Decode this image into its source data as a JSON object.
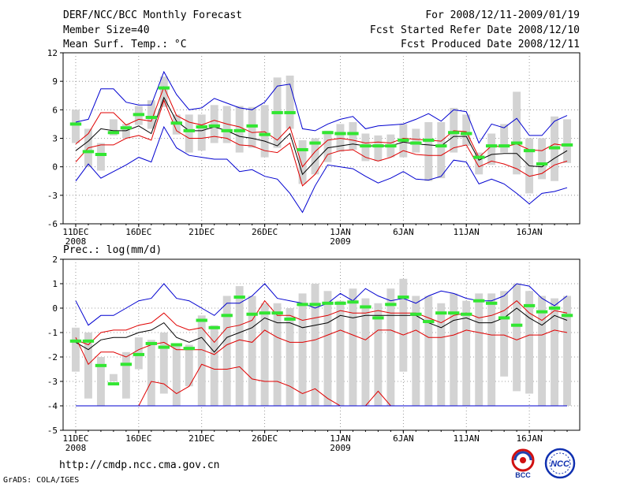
{
  "header": {
    "title": "DERF/NCC/BCC Monthly Forecast",
    "member_size": "Member Size=40",
    "variable": "Mean Surf. Temp.: °C",
    "period": "For 2008/12/11-2009/01/19",
    "started": "Fcst Started Refer Date 2008/12/10",
    "produced": "Fcst Produced Date 2008/12/11"
  },
  "prec_label": "Prec.: log(mm/d)",
  "footer_url": "http://cmdp.ncc.cma.gov.cn",
  "grads_credit": "GrADS: COLA/IGES",
  "logos": {
    "bcc": "BCC",
    "ncc": "NCC"
  },
  "colors": {
    "box": "#d3d3d3",
    "median": "#000000",
    "quartile": "#e00000",
    "extreme": "#0000d0",
    "observed": "#32e632",
    "grid": "#808080"
  },
  "chart_data": [
    {
      "type": "line",
      "title": "Mean Surf. Temp.: °C",
      "xlabel": "",
      "ylabel": "°C",
      "ylim": [
        -6,
        12
      ],
      "yticks": [
        "12",
        "9",
        "6",
        "3",
        "0",
        "-3",
        "-6"
      ],
      "xticks": [
        {
          "day": 1,
          "label": "11DEC",
          "sub": "2008"
        },
        {
          "day": 6,
          "label": "16DEC",
          "sub": ""
        },
        {
          "day": 11,
          "label": "21DEC",
          "sub": ""
        },
        {
          "day": 16,
          "label": "26DEC",
          "sub": ""
        },
        {
          "day": 22,
          "label": "1JAN",
          "sub": "2009"
        },
        {
          "day": 27,
          "label": "6JAN",
          "sub": ""
        },
        {
          "day": 32,
          "label": "11JAN",
          "sub": ""
        },
        {
          "day": 37,
          "label": "16JAN",
          "sub": ""
        }
      ],
      "days": [
        1,
        2,
        3,
        4,
        5,
        6,
        7,
        8,
        9,
        10,
        11,
        12,
        13,
        14,
        15,
        16,
        17,
        18,
        19,
        20,
        21,
        22,
        23,
        24,
        25,
        26,
        27,
        28,
        29,
        30,
        31,
        32,
        33,
        34,
        35,
        36,
        37,
        38,
        39,
        40
      ],
      "series": [
        {
          "name": "max",
          "values": [
            -1.5,
            0.3,
            -1.2,
            -0.5,
            0.2,
            1.0,
            0.5,
            4.2,
            2.0,
            1.2,
            1.0,
            0.8,
            0.8,
            -0.5,
            -0.3,
            -1.0,
            -1.3,
            -2.8,
            -4.8,
            -2.0,
            0.2,
            0.0,
            -0.2,
            -1.0,
            -1.7,
            -1.2,
            -0.5,
            -1.3,
            -1.4,
            -1.0,
            0.7,
            0.5,
            -1.8,
            -1.3,
            -1.8,
            -2.8,
            -3.9,
            -2.8,
            -2.6,
            -2.2
          ]
        },
        {
          "name": "q25",
          "values": [
            0.5,
            2.0,
            2.3,
            2.3,
            3.0,
            3.3,
            2.8,
            7.0,
            3.8,
            3.0,
            3.0,
            3.2,
            3.0,
            2.3,
            2.2,
            1.7,
            1.5,
            2.5,
            -2.0,
            -0.8,
            1.3,
            1.7,
            1.8,
            1.0,
            0.6,
            1.0,
            1.7,
            1.3,
            1.2,
            1.2,
            2.0,
            2.3,
            0.0,
            0.6,
            0.3,
            -0.2,
            -1.0,
            -0.7,
            0.2,
            0.6
          ]
        },
        {
          "name": "median",
          "values": [
            1.7,
            2.7,
            4.0,
            3.8,
            3.8,
            4.3,
            3.5,
            7.3,
            4.8,
            3.8,
            3.8,
            4.2,
            3.8,
            3.2,
            3.0,
            2.7,
            2.2,
            3.5,
            -0.8,
            0.6,
            2.0,
            2.2,
            2.4,
            2.2,
            2.2,
            2.2,
            2.6,
            2.4,
            2.3,
            2.2,
            3.2,
            3.2,
            0.7,
            1.3,
            1.4,
            1.4,
            0.1,
            0.0,
            0.9,
            1.7
          ]
        },
        {
          "name": "q75",
          "values": [
            2.4,
            3.5,
            5.7,
            5.7,
            4.4,
            5.0,
            4.8,
            8.4,
            5.4,
            4.7,
            4.4,
            4.9,
            4.5,
            4.2,
            3.6,
            3.7,
            2.8,
            4.2,
            0.0,
            1.6,
            2.8,
            3.0,
            2.8,
            2.5,
            2.6,
            2.5,
            3.0,
            2.9,
            2.8,
            2.7,
            3.8,
            3.7,
            1.0,
            2.2,
            2.1,
            2.4,
            1.8,
            1.7,
            2.4,
            2.2
          ]
        },
        {
          "name": "min",
          "values": [
            4.7,
            5.0,
            8.2,
            8.2,
            6.8,
            6.5,
            6.5,
            10.0,
            7.6,
            6.0,
            6.2,
            7.2,
            6.7,
            6.2,
            6.0,
            6.8,
            8.5,
            8.7,
            4.0,
            3.8,
            4.5,
            5.0,
            5.3,
            4.0,
            4.3,
            4.4,
            4.5,
            5.0,
            5.6,
            4.8,
            6.0,
            5.8,
            2.5,
            4.5,
            4.1,
            5.1,
            3.3,
            3.3,
            4.8,
            5.4
          ]
        }
      ],
      "box_low": [
        2.5,
        0.0,
        -0.4,
        3.3,
        3.0,
        4.4,
        4.0,
        6.3,
        3.4,
        1.5,
        1.7,
        2.5,
        2.5,
        1.5,
        2.0,
        1.0,
        2.0,
        4.0,
        -1.8,
        -0.8,
        0.5,
        1.6,
        1.8,
        0.6,
        0.6,
        1.0,
        1.0,
        1.5,
        -1.5,
        -1.2,
        1.5,
        2.2,
        -0.8,
        0.2,
        1.5,
        -0.8,
        -2.8,
        -1.3,
        -1.5,
        0.4
      ],
      "box_high": [
        6.0,
        4.0,
        2.5,
        5.0,
        4.5,
        6.4,
        7.0,
        9.5,
        5.5,
        5.5,
        5.5,
        6.5,
        6.4,
        6.4,
        6.3,
        6.5,
        9.4,
        9.6,
        2.8,
        3.0,
        3.8,
        4.5,
        4.7,
        3.5,
        3.3,
        3.4,
        4.5,
        4.0,
        4.7,
        4.7,
        6.2,
        5.5,
        1.5,
        3.5,
        4.5,
        7.9,
        3.0,
        3.0,
        5.3,
        5.0
      ],
      "observed": [
        4.5,
        1.6,
        1.3,
        3.6,
        4.1,
        5.5,
        5.2,
        8.3,
        4.6,
        3.8,
        4.2,
        4.3,
        3.8,
        3.8,
        4.3,
        3.4,
        5.7,
        5.7,
        1.8,
        2.5,
        3.6,
        3.5,
        3.5,
        2.2,
        2.2,
        2.2,
        2.8,
        2.5,
        2.8,
        2.2,
        3.6,
        3.5,
        1.0,
        2.2,
        2.2,
        2.5,
        1.7,
        0.3,
        2.0,
        2.3
      ]
    },
    {
      "type": "line",
      "title": "Prec.: log(mm/d)",
      "xlabel": "",
      "ylabel": "log(mm/d)",
      "ylim": [
        -5,
        2
      ],
      "yticks": [
        "2",
        "1",
        "0",
        "-1",
        "-2",
        "-3",
        "-4",
        "-5"
      ],
      "xticks": [
        {
          "day": 1,
          "label": "11DEC",
          "sub": "2008"
        },
        {
          "day": 6,
          "label": "16DEC",
          "sub": ""
        },
        {
          "day": 11,
          "label": "21DEC",
          "sub": ""
        },
        {
          "day": 16,
          "label": "26DEC",
          "sub": ""
        },
        {
          "day": 22,
          "label": "1JAN",
          "sub": "2009"
        },
        {
          "day": 27,
          "label": "6JAN",
          "sub": ""
        },
        {
          "day": 32,
          "label": "11JAN",
          "sub": ""
        },
        {
          "day": 37,
          "label": "16JAN",
          "sub": ""
        }
      ],
      "days": [
        1,
        2,
        3,
        4,
        5,
        6,
        7,
        8,
        9,
        10,
        11,
        12,
        13,
        14,
        15,
        16,
        17,
        18,
        19,
        20,
        21,
        22,
        23,
        24,
        25,
        26,
        27,
        28,
        29,
        30,
        31,
        32,
        33,
        34,
        35,
        36,
        37,
        38,
        39,
        40
      ],
      "series": [
        {
          "name": "max",
          "values": [
            0.3,
            -0.7,
            -0.3,
            -0.3,
            0.0,
            0.3,
            0.4,
            1.0,
            0.4,
            0.3,
            0.0,
            -0.3,
            0.2,
            0.2,
            0.5,
            1.0,
            0.4,
            0.3,
            0.2,
            0.0,
            0.2,
            0.6,
            0.3,
            0.8,
            0.5,
            0.3,
            0.4,
            0.2,
            0.5,
            0.7,
            0.6,
            0.4,
            0.3,
            0.3,
            0.5,
            1.0,
            0.9,
            0.4,
            0.1,
            0.5
          ]
        },
        {
          "name": "q75",
          "values": [
            -1.3,
            -1.5,
            -1.0,
            -0.9,
            -0.9,
            -0.7,
            -0.6,
            -0.2,
            -0.7,
            -0.9,
            -0.8,
            -1.4,
            -0.8,
            -0.7,
            -0.5,
            0.3,
            -0.3,
            -0.3,
            -0.5,
            -0.4,
            -0.3,
            -0.1,
            -0.2,
            -0.2,
            -0.1,
            -0.2,
            -0.2,
            -0.2,
            -0.4,
            -0.6,
            -0.3,
            -0.2,
            -0.4,
            -0.3,
            -0.1,
            0.3,
            -0.2,
            -0.5,
            -0.1,
            -0.2
          ]
        },
        {
          "name": "median",
          "values": [
            -1.4,
            -1.7,
            -1.3,
            -1.2,
            -1.2,
            -1.0,
            -0.9,
            -0.6,
            -1.2,
            -1.4,
            -1.2,
            -1.8,
            -1.2,
            -1.0,
            -0.8,
            -0.4,
            -0.6,
            -0.6,
            -0.8,
            -0.7,
            -0.6,
            -0.3,
            -0.4,
            -0.3,
            -0.3,
            -0.3,
            -0.3,
            -0.3,
            -0.6,
            -0.8,
            -0.5,
            -0.4,
            -0.6,
            -0.6,
            -0.4,
            0.0,
            -0.4,
            -0.7,
            -0.3,
            -0.5
          ]
        },
        {
          "name": "q25",
          "values": [
            -1.2,
            -2.3,
            -1.8,
            -1.8,
            -2.0,
            -1.7,
            -1.5,
            -1.4,
            -1.7,
            -1.7,
            -1.7,
            -1.9,
            -1.5,
            -1.3,
            -1.4,
            -0.9,
            -1.2,
            -1.4,
            -1.4,
            -1.3,
            -1.1,
            -0.9,
            -1.1,
            -1.3,
            -0.9,
            -0.9,
            -1.1,
            -0.9,
            -1.2,
            -1.2,
            -1.1,
            -0.9,
            -1.0,
            -1.1,
            -1.1,
            -1.3,
            -1.1,
            -1.1,
            -0.9,
            -1.0
          ]
        },
        {
          "name": "q10",
          "values": [
            -4.0,
            -4.0,
            -4.0,
            -4.0,
            -4.0,
            -4.0,
            -3.0,
            -3.1,
            -3.5,
            -3.2,
            -2.3,
            -2.5,
            -2.5,
            -2.4,
            -2.9,
            -3.0,
            -3.0,
            -3.2,
            -3.5,
            -3.3,
            -3.7,
            -4.0,
            -4.0,
            -4.0,
            -3.4,
            -4.0,
            -4.0,
            -4.0,
            -4.0,
            -4.0,
            -4.0,
            -4.0,
            -4.0,
            -4.0,
            -4.0,
            -4.0,
            -4.0,
            -4.0,
            -4.0,
            -4.0
          ]
        },
        {
          "name": "min",
          "values": [
            -4.0,
            -4.0,
            -4.0,
            -4.0,
            -4.0,
            -4.0,
            -4.0,
            -4.0,
            -4.0,
            -4.0,
            -4.0,
            -4.0,
            -4.0,
            -4.0,
            -4.0,
            -4.0,
            -4.0,
            -4.0,
            -4.0,
            -4.0,
            -4.0,
            -4.0,
            -4.0,
            -4.0,
            -4.0,
            -4.0,
            -4.0,
            -4.0,
            -4.0,
            -4.0,
            -4.0,
            -4.0,
            -4.0,
            -4.0,
            -4.0,
            -4.0,
            -4.0,
            -4.0,
            -4.0,
            -4.0
          ]
        }
      ],
      "box_low": [
        -2.6,
        -3.7,
        -4.0,
        -3.0,
        -3.7,
        -2.5,
        -4.0,
        -3.5,
        -4.0,
        -3.2,
        -4.0,
        -4.0,
        -4.0,
        -4.0,
        -4.0,
        -4.0,
        -4.0,
        -4.0,
        -4.0,
        -4.0,
        -4.0,
        -4.0,
        -4.0,
        -4.0,
        -4.0,
        -4.0,
        -2.6,
        -4.0,
        -4.0,
        -4.0,
        -4.0,
        -4.0,
        -4.0,
        -4.0,
        -2.8,
        -3.4,
        -3.5,
        -4.0,
        -4.0,
        -4.0
      ],
      "box_high": [
        -0.8,
        -1.0,
        -2.0,
        -2.7,
        -1.8,
        -1.2,
        -1.3,
        -1.0,
        -1.5,
        -1.5,
        -0.3,
        -0.7,
        0.5,
        0.9,
        0.5,
        0.2,
        0.2,
        0.0,
        0.6,
        1.0,
        0.7,
        0.3,
        0.8,
        0.4,
        0.2,
        0.8,
        1.2,
        0.5,
        0.5,
        0.2,
        0.6,
        0.3,
        0.6,
        0.6,
        0.7,
        1.0,
        0.7,
        0.5,
        0.4,
        0.5
      ],
      "observed": [
        -1.35,
        -1.35,
        -2.35,
        -3.1,
        -2.3,
        -1.9,
        -1.45,
        -1.6,
        -1.5,
        -1.65,
        -0.5,
        -0.8,
        -0.3,
        0.45,
        -0.25,
        -0.2,
        -0.2,
        -0.45,
        0.15,
        0.15,
        0.2,
        0.2,
        0.25,
        0.05,
        -0.4,
        0.15,
        0.45,
        -0.25,
        -0.55,
        -0.2,
        -0.2,
        -0.25,
        0.3,
        0.2,
        -0.4,
        -0.7,
        0.1,
        -0.15,
        0.0,
        -0.3
      ]
    }
  ]
}
